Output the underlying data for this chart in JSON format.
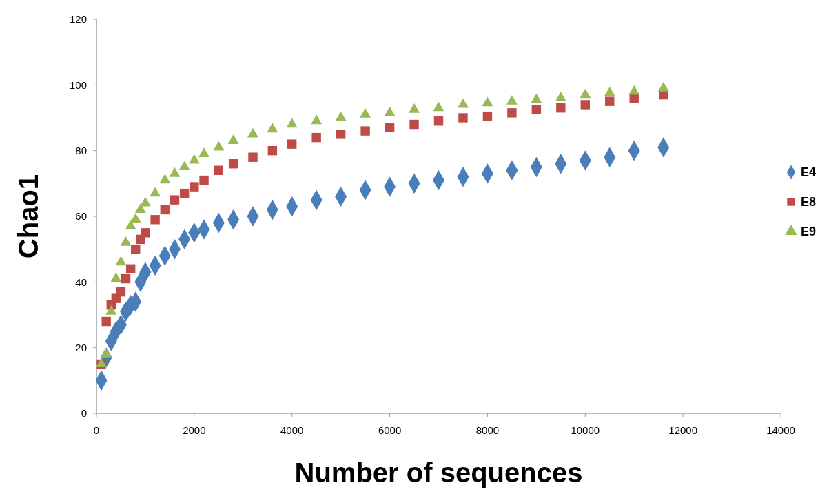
{
  "chart_data": {
    "type": "scatter",
    "xlabel": "Number of sequences",
    "ylabel": "Chao1",
    "x": [
      100,
      200,
      300,
      400,
      500,
      600,
      700,
      800,
      900,
      1000,
      1200,
      1400,
      1600,
      1800,
      2000,
      2200,
      2500,
      2800,
      3200,
      3600,
      4000,
      4500,
      5000,
      5500,
      6000,
      6500,
      7000,
      7500,
      8000,
      8500,
      9000,
      9500,
      10000,
      10500,
      11000,
      11600
    ],
    "series": [
      {
        "name": "E4",
        "color": "#4a7ebb",
        "marker": "diamond",
        "values": [
          10,
          17,
          22,
          25,
          27,
          31,
          33,
          34,
          40,
          43,
          45,
          48,
          50,
          53,
          55,
          56,
          58,
          59,
          60,
          62,
          63,
          65,
          66,
          68,
          69,
          70,
          71,
          72,
          73,
          74,
          75,
          76,
          77,
          78,
          80,
          81
        ]
      },
      {
        "name": "E8",
        "color": "#be4b48",
        "marker": "square",
        "values": [
          15,
          28,
          33,
          35,
          37,
          41,
          44,
          50,
          53,
          55,
          59,
          62,
          65,
          67,
          69,
          71,
          74,
          76,
          78,
          80,
          82,
          84,
          85,
          86,
          87,
          88,
          89,
          90,
          90.5,
          91.5,
          92.5,
          93,
          94,
          95,
          96,
          97
        ]
      },
      {
        "name": "E9",
        "color": "#98b954",
        "marker": "triangle",
        "values": [
          15,
          18,
          31,
          41,
          46,
          52,
          57,
          59,
          62,
          64,
          67,
          71,
          73,
          75,
          77,
          79,
          81,
          83,
          85,
          86.5,
          88,
          89,
          90,
          91,
          91.5,
          92.5,
          93,
          94,
          94.5,
          95,
          95.5,
          96,
          97,
          97.5,
          98,
          99
        ]
      }
    ],
    "xlim": [
      0,
      14000
    ],
    "xticks": [
      0,
      2000,
      4000,
      6000,
      8000,
      10000,
      12000,
      14000
    ],
    "ylim": [
      0,
      120
    ],
    "yticks": [
      0,
      20,
      40,
      60,
      80,
      100,
      120
    ],
    "grid": false,
    "legend": "right"
  }
}
